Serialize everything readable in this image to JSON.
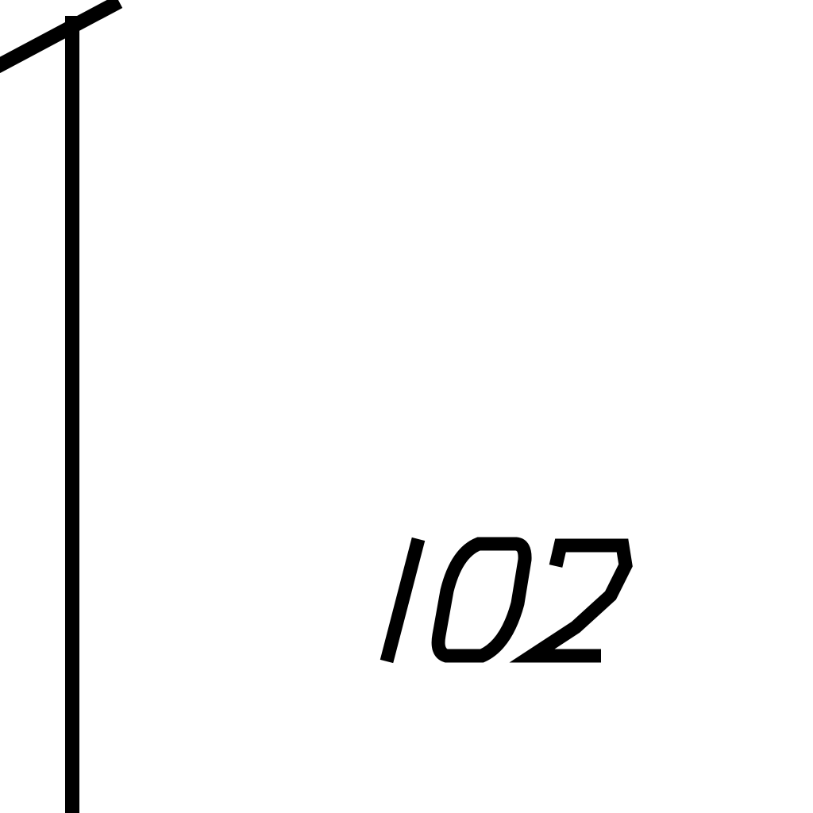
{
  "diagram": {
    "label_text": "102",
    "stroke_color": "#000000",
    "background_color": "#ffffff"
  }
}
